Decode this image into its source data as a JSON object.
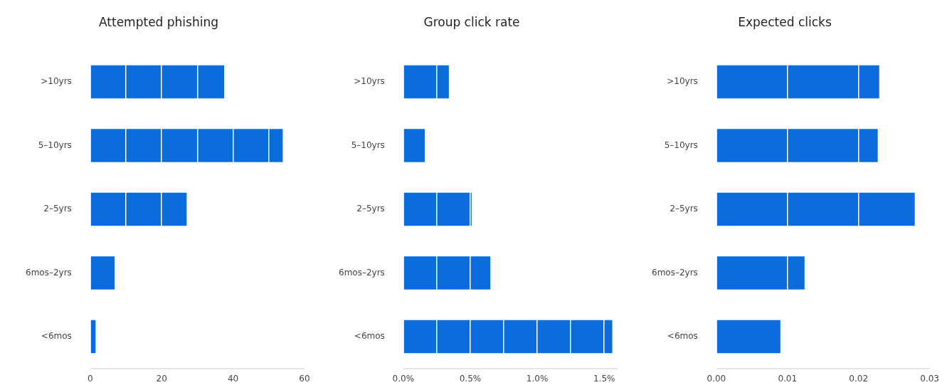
{
  "chart_data": [
    {
      "type": "bar",
      "orientation": "horizontal",
      "title": "Attempted phishing",
      "categories": [
        ">10yrs",
        "5–10yrs",
        "2–5yrs",
        "6mos–2yrs",
        "<6mos"
      ],
      "values": [
        37.5,
        53.9,
        27,
        6.8,
        1.5
      ],
      "color": "#0b6cdc",
      "xlim": [
        0,
        60
      ],
      "xticks": [
        0,
        {
          "value": 10,
          "label": null
        },
        20,
        {
          "value": 30,
          "label": null
        },
        40,
        {
          "value": 50,
          "label": null
        },
        60
      ],
      "grid": "x"
    },
    {
      "type": "bar",
      "orientation": "horizontal",
      "title": "Group click rate",
      "categories": [
        ">10yrs",
        "5–10yrs",
        "2–5yrs",
        "6mos–2yrs",
        "<6mos"
      ],
      "values": [
        0.34,
        0.16,
        0.51,
        0.65,
        1.56
      ],
      "color": "#0b6cdc",
      "xlim": [
        0,
        1.6
      ],
      "xticks": [
        {
          "value": 0,
          "label": "0.0%"
        },
        {
          "value": 0.25,
          "label": null
        },
        {
          "value": 0.5,
          "label": "0.5%"
        },
        {
          "value": 0.75,
          "label": null
        },
        {
          "value": 1,
          "label": "1.0%"
        },
        {
          "value": 1.25,
          "label": null
        },
        {
          "value": 1.5,
          "label": "1.5%"
        }
      ],
      "grid": "x"
    },
    {
      "type": "bar",
      "orientation": "horizontal",
      "title": "Expected clicks",
      "categories": [
        ">10yrs",
        "5–10yrs",
        "2–5yrs",
        "6mos–2yrs",
        "<6mos"
      ],
      "values": [
        0.0229,
        0.0227,
        0.0279,
        0.0124,
        0.009
      ],
      "color": "#0b6cdc",
      "xlim": [
        0,
        0.03
      ],
      "xticks": [
        {
          "value": 0,
          "label": "0.00"
        },
        {
          "value": 0.01,
          "label": "0.01"
        },
        {
          "value": 0.02,
          "label": "0.02"
        },
        {
          "value": 0.03,
          "label": "0.03"
        }
      ],
      "grid": "x"
    }
  ]
}
